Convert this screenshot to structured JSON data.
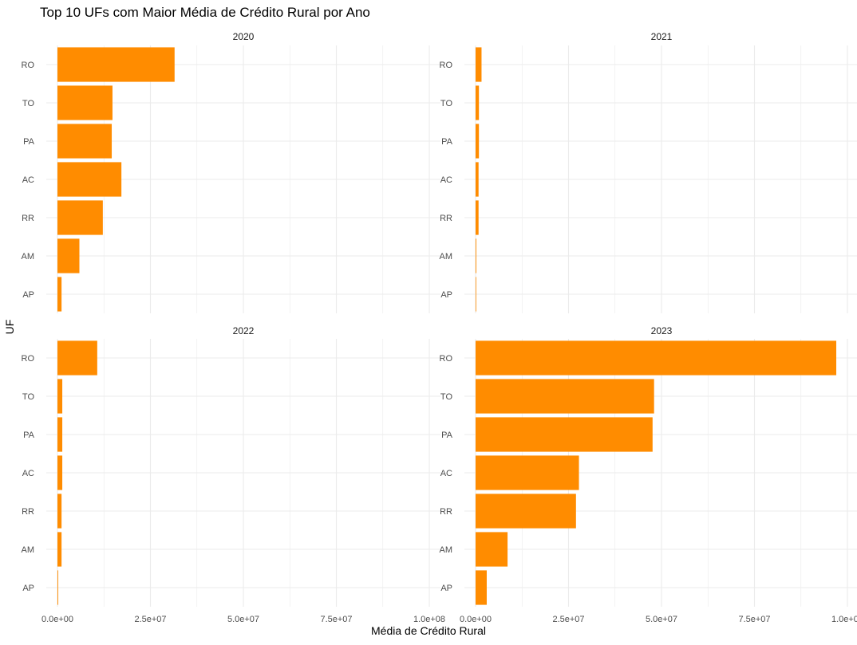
{
  "chart_data": {
    "type": "bar",
    "orientation": "horizontal",
    "title": "Top 10 UFs com Maior Média de Crédito Rural por Ano",
    "xlabel": "Média de Crédito Rural",
    "ylabel": "UF",
    "xlim": [
      0,
      100000000
    ],
    "x_ticks": [
      0,
      25000000,
      50000000,
      75000000,
      100000000
    ],
    "x_tick_labels": [
      "0.0e+00",
      "2.5e+07",
      "5.0e+07",
      "7.5e+07",
      "1.0e+08"
    ],
    "categories": [
      "RO",
      "TO",
      "PA",
      "AC",
      "RR",
      "AM",
      "AP"
    ],
    "grid": true,
    "bar_color": "#ff8c00",
    "facets": [
      {
        "name": "2020",
        "values": [
          31500000,
          14800000,
          14600000,
          17200000,
          12200000,
          5900000,
          1100000
        ]
      },
      {
        "name": "2021",
        "values": [
          1600000,
          900000,
          900000,
          800000,
          800000,
          200000,
          150000
        ]
      },
      {
        "name": "2022",
        "values": [
          10700000,
          1300000,
          1300000,
          1300000,
          1100000,
          1100000,
          200000
        ]
      },
      {
        "name": "2023",
        "values": [
          97000000,
          48000000,
          47600000,
          27800000,
          27000000,
          8600000,
          3000000
        ]
      }
    ]
  }
}
